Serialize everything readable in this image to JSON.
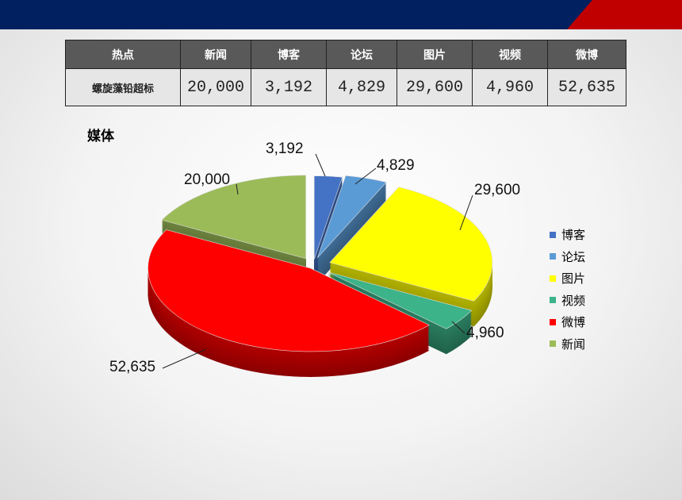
{
  "table": {
    "headers": [
      "热点",
      "新闻",
      "博客",
      "论坛",
      "图片",
      "视频",
      "微博"
    ],
    "row_label": "螺旋藻铅超标",
    "values": [
      "20,000",
      "3,192",
      "4,829",
      "29,600",
      "4,960",
      "52,635"
    ]
  },
  "chart_data": {
    "type": "pie",
    "title": "媒体",
    "style": "3d-exploded",
    "categories": [
      "博客",
      "论坛",
      "图片",
      "视频",
      "微博",
      "新闻"
    ],
    "values": [
      3192,
      4829,
      29600,
      4960,
      52635,
      20000
    ],
    "labels": [
      "3,192",
      "4,829",
      "29,600",
      "4,960",
      "52,635",
      "20,000"
    ],
    "colors": [
      "#4472c4",
      "#5b9bd5",
      "#ffff00",
      "#3cb389",
      "#ff0000",
      "#9bbb59"
    ],
    "legend_position": "right"
  }
}
